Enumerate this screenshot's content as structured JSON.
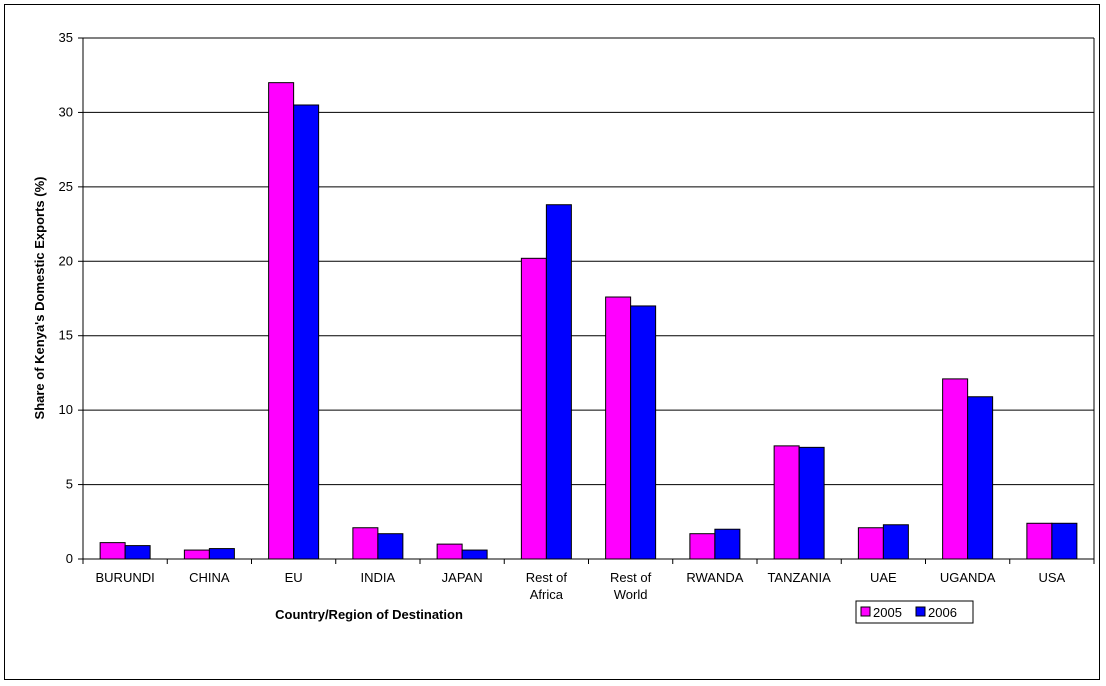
{
  "chart_data": {
    "type": "bar",
    "title": "",
    "xlabel": "Country/Region of Destination",
    "ylabel": "Share of Kenya's Domestic Exports (%)",
    "ylim": [
      0,
      35
    ],
    "yticks": [
      "0",
      "5",
      "10",
      "15",
      "20",
      "25",
      "30",
      "35"
    ],
    "grid": true,
    "legend_position": "bottom-right",
    "categories": [
      [
        "BURUNDI"
      ],
      [
        "CHINA"
      ],
      [
        "EU"
      ],
      [
        "INDIA"
      ],
      [
        "JAPAN"
      ],
      [
        "Rest of",
        "Africa"
      ],
      [
        "Rest of",
        "World"
      ],
      [
        "RWANDA"
      ],
      [
        "TANZANIA"
      ],
      [
        "UAE"
      ],
      [
        "UGANDA"
      ],
      [
        "USA"
      ]
    ],
    "series": [
      {
        "name": "2005",
        "color": "#FF00FF",
        "values": [
          1.1,
          0.6,
          32.0,
          2.1,
          1.0,
          20.2,
          17.6,
          1.7,
          7.6,
          2.1,
          12.1,
          2.4
        ]
      },
      {
        "name": "2006",
        "color": "#0000FF",
        "values": [
          0.9,
          0.7,
          30.5,
          1.7,
          0.6,
          23.8,
          17.0,
          2.0,
          7.5,
          2.3,
          10.9,
          2.4
        ]
      }
    ]
  }
}
